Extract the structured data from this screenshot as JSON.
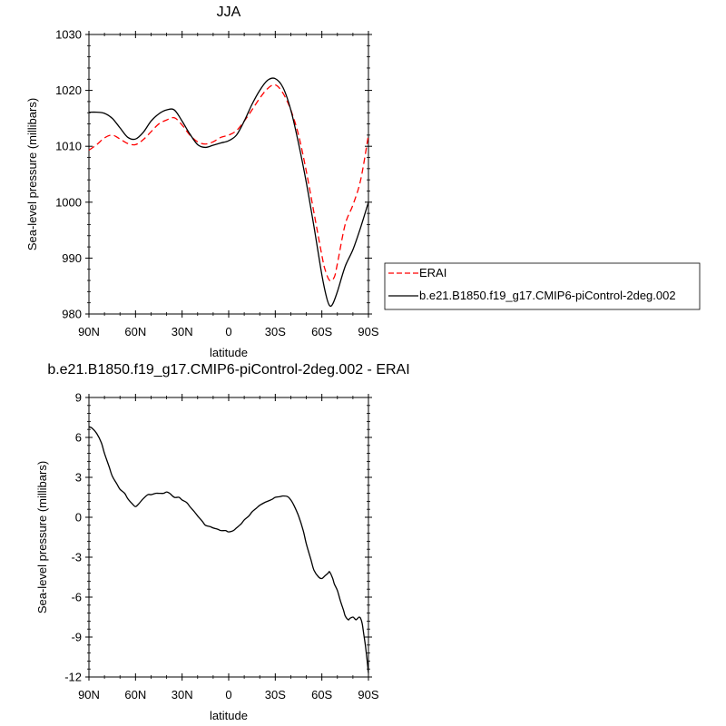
{
  "chart_data": [
    {
      "type": "line",
      "title": "JJA",
      "xlabel": "latitude",
      "ylabel": "Sea-level pressure (millibars)",
      "x_ticks": [
        90,
        60,
        30,
        0,
        -30,
        -60,
        -90
      ],
      "x_tick_labels": [
        "90N",
        "60N",
        "30N",
        "0",
        "30S",
        "60S",
        "90S"
      ],
      "xlim": [
        90,
        -90
      ],
      "ylim": [
        980,
        1030
      ],
      "y_ticks": [
        980,
        990,
        1000,
        1010,
        1020,
        1030
      ],
      "y_tick_labels": [
        "980",
        "990",
        "1000",
        "1010",
        "1020",
        "1030"
      ],
      "legend_position": "right",
      "series": [
        {
          "name": "ERAI",
          "color": "#ff0000",
          "dash": "dashed",
          "x": [
            90,
            85,
            80,
            75,
            70,
            65,
            60,
            55,
            50,
            45,
            40,
            35,
            30,
            25,
            20,
            15,
            10,
            5,
            0,
            -5,
            -10,
            -15,
            -20,
            -25,
            -30,
            -35,
            -40,
            -45,
            -50,
            -55,
            -60,
            -62,
            -65,
            -68,
            -70,
            -75,
            -80,
            -85,
            -90
          ],
          "y": [
            1009.3,
            1010.3,
            1011.5,
            1012.0,
            1011.3,
            1010.5,
            1010.3,
            1011.2,
            1012.6,
            1014.0,
            1014.7,
            1015.1,
            1013.8,
            1012.0,
            1010.8,
            1010.4,
            1010.8,
            1011.6,
            1012.0,
            1012.8,
            1014.5,
            1016.5,
            1018.6,
            1020.3,
            1021.0,
            1019.5,
            1016.5,
            1012.0,
            1005.5,
            998.0,
            990.5,
            988.0,
            986.0,
            986.6,
            989.0,
            996.0,
            999.5,
            1004.0,
            1012.0
          ]
        },
        {
          "name": "b.e21.B1850.f19_g17.CMIP6-piControl-2deg.002",
          "color": "#000000",
          "dash": "solid",
          "x": [
            90,
            85,
            80,
            75,
            70,
            65,
            60,
            55,
            50,
            45,
            40,
            35,
            30,
            25,
            20,
            15,
            10,
            5,
            0,
            -5,
            -10,
            -15,
            -20,
            -25,
            -30,
            -35,
            -40,
            -45,
            -50,
            -55,
            -60,
            -63,
            -65,
            -67,
            -70,
            -75,
            -80,
            -85,
            -90
          ],
          "y": [
            1016.1,
            1016.1,
            1015.9,
            1015.0,
            1013.3,
            1011.6,
            1011.3,
            1012.5,
            1014.5,
            1015.8,
            1016.5,
            1016.5,
            1014.5,
            1012.2,
            1010.3,
            1009.8,
            1010.2,
            1010.6,
            1011.0,
            1012.0,
            1014.5,
            1017.5,
            1020.0,
            1021.8,
            1022.1,
            1020.5,
            1016.5,
            1010.5,
            1003.5,
            995.5,
            987.0,
            983.0,
            981.5,
            981.8,
            984.0,
            988.5,
            991.5,
            995.5,
            1000.0
          ]
        }
      ]
    },
    {
      "type": "line",
      "title": "b.e21.B1850.f19_g17.CMIP6-piControl-2deg.002 - ERAI",
      "xlabel": "latitude",
      "ylabel": "Sea-level pressure (millibars)",
      "x_ticks": [
        90,
        60,
        30,
        0,
        -30,
        -60,
        -90
      ],
      "x_tick_labels": [
        "90N",
        "60N",
        "30N",
        "0",
        "30S",
        "60S",
        "90S"
      ],
      "xlim": [
        90,
        -90
      ],
      "ylim": [
        -12,
        9
      ],
      "y_ticks": [
        -12,
        -9,
        -6,
        -3,
        0,
        3,
        6,
        9
      ],
      "y_tick_labels": [
        "-12",
        "-9",
        "-6",
        "-3",
        "0",
        "3",
        "6",
        "9"
      ],
      "series": [
        {
          "color": "#000000",
          "dash": "solid",
          "x": [
            90,
            88,
            85,
            82,
            80,
            77,
            75,
            72,
            70,
            67,
            65,
            62,
            60,
            58,
            55,
            52,
            50,
            47,
            45,
            42,
            40,
            38,
            35,
            32,
            30,
            27,
            25,
            22,
            20,
            17,
            15,
            12,
            10,
            7,
            5,
            2,
            0,
            -3,
            -5,
            -8,
            -10,
            -13,
            -15,
            -18,
            -20,
            -23,
            -25,
            -28,
            -30,
            -33,
            -35,
            -38,
            -40,
            -42,
            -45,
            -48,
            -50,
            -53,
            -55,
            -58,
            -60,
            -62,
            -64,
            -65,
            -67,
            -68,
            -70,
            -72,
            -74,
            -75,
            -77,
            -78,
            -80,
            -81,
            -82,
            -83,
            -84,
            -85,
            -86,
            -87,
            -88,
            -89,
            -90
          ],
          "y": [
            6.8,
            6.7,
            6.3,
            5.6,
            4.8,
            3.8,
            3.1,
            2.5,
            2.1,
            1.8,
            1.4,
            1.0,
            0.8,
            1.0,
            1.4,
            1.7,
            1.7,
            1.8,
            1.8,
            1.8,
            1.9,
            1.8,
            1.5,
            1.5,
            1.3,
            1.1,
            0.8,
            0.4,
            0.1,
            -0.3,
            -0.6,
            -0.7,
            -0.8,
            -0.9,
            -1.0,
            -1.0,
            -1.1,
            -1.0,
            -0.8,
            -0.5,
            -0.2,
            0.1,
            0.4,
            0.7,
            0.9,
            1.1,
            1.2,
            1.35,
            1.5,
            1.55,
            1.6,
            1.55,
            1.3,
            0.9,
            0.1,
            -1.0,
            -2.0,
            -3.2,
            -4.0,
            -4.5,
            -4.6,
            -4.4,
            -4.2,
            -4.1,
            -4.6,
            -5.0,
            -5.5,
            -6.3,
            -7.0,
            -7.4,
            -7.7,
            -7.6,
            -7.5,
            -7.6,
            -7.7,
            -7.6,
            -7.5,
            -7.6,
            -8.0,
            -8.8,
            -9.6,
            -10.6,
            -11.7
          ]
        }
      ]
    }
  ]
}
